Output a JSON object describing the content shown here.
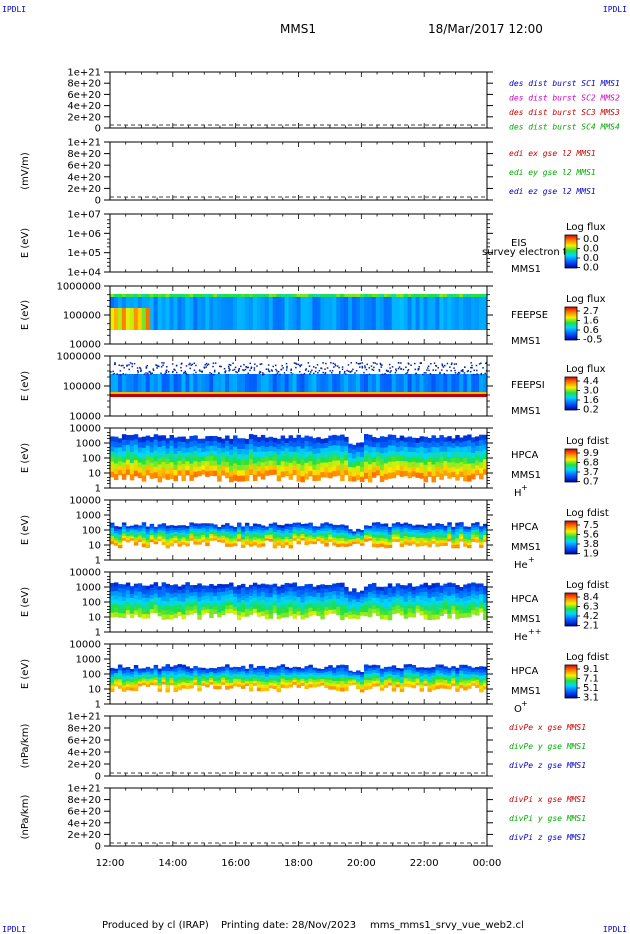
{
  "header": {
    "corner_label": "IPDLI",
    "title": "MMS1",
    "date": "18/Mar/2017 12:00"
  },
  "footer": {
    "produced_by": "Produced by cl (IRAP)",
    "printing_date": "Printing date: 28/Nov/2023",
    "file": "mms_mms1_srvy_vue_web2.cl"
  },
  "chart_data": {
    "type": "heatmap",
    "x_axis": {
      "ticks": [
        "12:00",
        "14:00",
        "16:00",
        "18:00",
        "20:00",
        "22:00",
        "00:00"
      ],
      "range_hours": [
        12,
        24
      ]
    },
    "panels": [
      {
        "id": "des_dist",
        "kind": "line",
        "ylabel": "",
        "yticks": [
          "1e+21",
          "8e+20",
          "6e+20",
          "4e+20",
          "2e+20",
          "0"
        ],
        "legend": [
          {
            "text": "des dist burst SC1 MMS1",
            "color": "#0000cc"
          },
          {
            "text": "des dist burst SC2 MMS2",
            "color": "#cc00cc"
          },
          {
            "text": "des dist burst SC3 MMS3",
            "color": "#cc0000"
          },
          {
            "text": "des dist burst SC4 MMS4",
            "color": "#00aa00"
          }
        ]
      },
      {
        "id": "edi",
        "kind": "line",
        "ylabel": "(mV/m)",
        "yticks": [
          "1e+21",
          "8e+20",
          "6e+20",
          "4e+20",
          "2e+20",
          "0"
        ],
        "legend": [
          {
            "text": "edi ex gse l2 MMS1",
            "color": "#cc0000"
          },
          {
            "text": "edi ey gse l2 MMS1",
            "color": "#00aa00"
          },
          {
            "text": "edi ez gse l2 MMS1",
            "color": "#0000cc"
          }
        ]
      },
      {
        "id": "eis",
        "kind": "spectrogram",
        "ylabel": "E (eV)",
        "yticks": [
          "1e+07",
          "1e+06",
          "1e+05",
          "1e+04"
        ],
        "name": "EIS",
        "subname": "MMS1",
        "overlay": "survey electron te",
        "cb_title": "Log flux",
        "cb_ticks": [
          "0.0",
          "0.0",
          "0.0",
          "0.0"
        ]
      },
      {
        "id": "feepse",
        "kind": "spectrogram",
        "ylabel": "E (eV)",
        "yticks": [
          "1000000",
          "100000",
          "10000"
        ],
        "name": "FEEPSE",
        "subname": "MMS1",
        "cb_title": "Log flux",
        "cb_ticks": [
          "2.7",
          "1.6",
          "0.6",
          "-0.5"
        ]
      },
      {
        "id": "feepsi",
        "kind": "spectrogram",
        "ylabel": "E (eV)",
        "yticks": [
          "1000000",
          "100000",
          "10000"
        ],
        "name": "FEEPSI",
        "subname": "MMS1",
        "cb_title": "Log flux",
        "cb_ticks": [
          "4.4",
          "3.0",
          "1.6",
          "0.2"
        ]
      },
      {
        "id": "hpca_h",
        "kind": "spectrogram",
        "ylabel": "E (eV)",
        "yticks": [
          "10000",
          "1000",
          "100",
          "10",
          "1"
        ],
        "name": "HPCA",
        "subname": "MMS1",
        "species": "H",
        "charge": "+",
        "cb_title": "Log fdist",
        "cb_ticks": [
          "9.9",
          "6.8",
          "3.7",
          "0.7"
        ]
      },
      {
        "id": "hpca_he1",
        "kind": "spectrogram",
        "ylabel": "E (eV)",
        "yticks": [
          "10000",
          "1000",
          "100",
          "10",
          "1"
        ],
        "name": "HPCA",
        "subname": "MMS1",
        "species": "He",
        "charge": "+",
        "cb_title": "Log fdist",
        "cb_ticks": [
          "7.5",
          "5.6",
          "3.8",
          "1.9"
        ]
      },
      {
        "id": "hpca_he2",
        "kind": "spectrogram",
        "ylabel": "E (eV)",
        "yticks": [
          "10000",
          "1000",
          "100",
          "10",
          "1"
        ],
        "name": "HPCA",
        "subname": "MMS1",
        "species": "He",
        "charge": "++",
        "cb_title": "Log fdist",
        "cb_ticks": [
          "8.4",
          "6.3",
          "4.2",
          "2.1"
        ]
      },
      {
        "id": "hpca_o",
        "kind": "spectrogram",
        "ylabel": "E (eV)",
        "yticks": [
          "10000",
          "1000",
          "100",
          "10",
          "1"
        ],
        "name": "HPCA",
        "subname": "MMS1",
        "species": "O",
        "charge": "+",
        "cb_title": "Log fdist",
        "cb_ticks": [
          "9.1",
          "7.1",
          "5.1",
          "3.1"
        ]
      },
      {
        "id": "divpe",
        "kind": "line",
        "ylabel": "(nPa/km)",
        "yticks": [
          "1e+21",
          "8e+20",
          "6e+20",
          "4e+20",
          "2e+20",
          "0"
        ],
        "legend": [
          {
            "text": "divPe x gse MMS1",
            "color": "#cc0000"
          },
          {
            "text": "divPe y gse MMS1",
            "color": "#00aa00"
          },
          {
            "text": "divPe z gse MMS1",
            "color": "#0000cc"
          }
        ]
      },
      {
        "id": "divpi",
        "kind": "line",
        "ylabel": "(nPa/km)",
        "yticks": [
          "1e+21",
          "8e+20",
          "6e+20",
          "4e+20",
          "2e+20",
          "0"
        ],
        "legend": [
          {
            "text": "divPi x gse MMS1",
            "color": "#cc0000"
          },
          {
            "text": "divPi y gse MMS1",
            "color": "#00aa00"
          },
          {
            "text": "divPi z gse MMS1",
            "color": "#0000cc"
          }
        ]
      }
    ]
  }
}
